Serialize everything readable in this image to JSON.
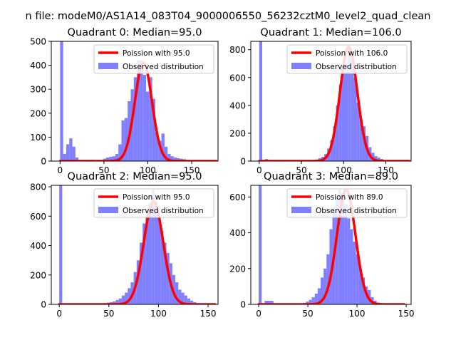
{
  "figure_title": "n file: modeM0/AS1A14_083T04_9000006550_56232cztM0_level2_quad_clean",
  "colors": {
    "fit_line": "#ff0000",
    "hist_fill": "#7f7fff",
    "axis": "#000000",
    "background": "#ffffff"
  },
  "chart_data": [
    {
      "type": "bar",
      "title": "Quadrant 0: Median=95.0",
      "xlim": [
        -10,
        180
      ],
      "ylim": [
        0,
        500
      ],
      "xticks": [
        0,
        50,
        100,
        150
      ],
      "yticks": [
        0,
        100,
        200,
        300,
        400,
        500
      ],
      "legend": {
        "position": "top-right",
        "fit_label": "Poission with 95.0",
        "hist_label": "Observed distribution"
      },
      "fit": {
        "label": "Poission with 95.0",
        "lambda": 95.0,
        "peak": 411,
        "x_min": 0,
        "x_max": 178
      },
      "histogram": {
        "bin_edges": [
          0,
          3.5,
          7,
          10.5,
          14,
          17.5,
          21,
          24.5,
          28,
          31.5,
          35,
          38.5,
          42,
          45.5,
          49,
          52.5,
          56,
          59.5,
          63,
          66.5,
          70,
          73.5,
          77,
          80.5,
          84,
          87.5,
          91,
          94.5,
          98,
          101.5,
          105,
          108.5,
          112,
          115.5,
          119,
          122.5,
          126,
          129.5,
          133,
          136.5,
          140,
          143.5,
          147,
          150.5,
          154,
          157.5,
          161,
          164.5,
          168,
          171.5,
          175
        ],
        "counts": [
          500,
          30,
          70,
          95,
          60,
          15,
          5,
          3,
          2,
          3,
          5,
          2,
          1,
          4,
          10,
          15,
          18,
          20,
          30,
          70,
          170,
          180,
          250,
          300,
          350,
          420,
          420,
          360,
          290,
          350,
          260,
          120,
          85,
          115,
          60,
          30,
          20,
          15,
          12,
          10,
          8,
          5,
          3,
          3,
          2,
          2,
          1,
          1,
          1,
          1
        ]
      }
    },
    {
      "type": "bar",
      "title": "Quadrant 1: Median=106.0",
      "xlim": [
        -10,
        180
      ],
      "ylim": [
        0,
        860
      ],
      "xticks": [
        0,
        50,
        100,
        150
      ],
      "yticks": [
        0,
        200,
        400,
        600,
        800
      ],
      "legend": {
        "position": "top-right",
        "fit_label": "Poission with 106.0",
        "hist_label": "Observed distribution"
      },
      "fit": {
        "label": "Poission with 106.0",
        "lambda": 106.0,
        "peak": 820,
        "x_min": 0,
        "x_max": 178
      },
      "histogram": {
        "bin_edges": [
          0,
          3.5,
          7,
          10.5,
          14,
          17.5,
          21,
          24.5,
          28,
          31.5,
          35,
          38.5,
          42,
          45.5,
          49,
          52.5,
          56,
          59.5,
          63,
          66.5,
          70,
          73.5,
          77,
          80.5,
          84,
          87.5,
          91,
          94.5,
          98,
          101.5,
          105,
          108.5,
          112,
          115.5,
          119,
          122.5,
          126,
          129.5,
          133,
          136.5,
          140,
          143.5,
          147,
          150.5,
          154,
          157.5,
          161,
          164.5,
          168,
          171.5,
          175
        ],
        "counts": [
          860,
          5,
          15,
          8,
          3,
          2,
          1,
          1,
          1,
          1,
          1,
          1,
          1,
          1,
          2,
          3,
          4,
          5,
          8,
          12,
          20,
          30,
          50,
          90,
          150,
          250,
          400,
          550,
          650,
          700,
          820,
          730,
          600,
          420,
          300,
          250,
          180,
          100,
          60,
          35,
          25,
          15,
          8,
          5,
          3,
          2,
          1,
          1,
          1,
          1
        ]
      }
    },
    {
      "type": "bar",
      "title": "Quadrant 2: Median=95.0",
      "xlim": [
        -8,
        160
      ],
      "ylim": [
        0,
        810
      ],
      "xticks": [
        0,
        50,
        100,
        150
      ],
      "yticks": [
        0,
        200,
        400,
        600,
        800
      ],
      "legend": {
        "position": "top-right",
        "fit_label": "Poission with 95.0",
        "hist_label": "Observed distribution"
      },
      "fit": {
        "label": "Poission with 95.0",
        "lambda": 95.0,
        "peak": 700,
        "x_min": 0,
        "x_max": 157
      },
      "histogram": {
        "bin_edges": [
          0,
          3,
          6,
          9,
          12,
          15,
          18,
          21,
          24,
          27,
          30,
          33,
          36,
          39,
          42,
          45,
          48,
          51,
          54,
          57,
          60,
          63,
          66,
          69,
          72,
          75,
          78,
          81,
          84,
          87,
          90,
          93,
          96,
          99,
          102,
          105,
          108,
          111,
          114,
          117,
          120,
          123,
          126,
          129,
          132,
          135,
          138,
          141,
          144,
          147,
          150
        ],
        "counts": [
          810,
          2,
          3,
          3,
          2,
          2,
          2,
          2,
          2,
          2,
          2,
          2,
          2,
          3,
          5,
          8,
          12,
          15,
          20,
          30,
          40,
          60,
          80,
          110,
          150,
          220,
          300,
          420,
          550,
          620,
          690,
          780,
          700,
          600,
          500,
          420,
          350,
          280,
          200,
          150,
          100,
          80,
          60,
          40,
          25,
          15,
          8,
          5,
          3,
          2
        ]
      }
    },
    {
      "type": "bar",
      "title": "Quadrant 3: Median=89.0",
      "xlim": [
        -8,
        155
      ],
      "ylim": [
        0,
        665
      ],
      "xticks": [
        0,
        50,
        100,
        150
      ],
      "yticks": [
        0,
        200,
        400,
        600
      ],
      "legend": {
        "position": "top-right",
        "fit_label": "Poission with 89.0",
        "hist_label": "Observed distribution"
      },
      "fit": {
        "label": "Poission with 89.0",
        "lambda": 89.0,
        "peak": 640,
        "x_min": 0,
        "x_max": 148
      },
      "histogram": {
        "bin_edges": [
          0,
          3,
          6,
          9,
          12,
          15,
          18,
          21,
          24,
          27,
          30,
          33,
          36,
          39,
          42,
          45,
          48,
          51,
          54,
          57,
          60,
          63,
          66,
          69,
          72,
          75,
          78,
          81,
          84,
          87,
          90,
          93,
          96,
          99,
          102,
          105,
          108,
          111,
          114,
          117,
          120,
          123,
          126,
          129,
          132,
          135,
          138,
          141,
          144,
          147
        ],
        "counts": [
          665,
          3,
          20,
          20,
          20,
          5,
          2,
          2,
          2,
          2,
          2,
          2,
          2,
          3,
          5,
          8,
          15,
          25,
          40,
          60,
          90,
          150,
          200,
          280,
          420,
          520,
          600,
          640,
          620,
          560,
          480,
          420,
          350,
          280,
          200,
          150,
          100,
          80,
          40,
          20,
          10,
          5,
          3,
          2,
          2,
          1,
          1,
          1,
          1
        ]
      }
    }
  ]
}
